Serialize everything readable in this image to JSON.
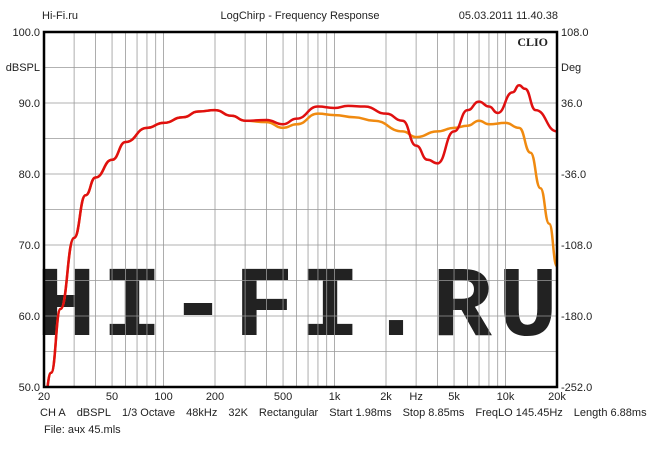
{
  "header": {
    "left": "Hi-Fi.ru",
    "title": "LogChirp - Frequency Response",
    "datetime": "05.03.2011 11.40.38"
  },
  "brand": "CLIO",
  "watermark": "HI-FI.RU",
  "footer": {
    "settings": [
      "CH A",
      "dBSPL",
      "1/3 Octave",
      "48kHz",
      "32K",
      "Rectangular",
      "Start 1.98ms",
      "Stop 8.85ms",
      "FreqLO 145.45Hz",
      "Length 6.88ms"
    ],
    "file": "File: aчx 45.mls"
  },
  "chart_data": {
    "type": "line",
    "title": "LogChirp - Frequency Response",
    "xlabel": "Hz",
    "ylabel": "dBSPL",
    "y2label": "Deg",
    "xscale": "log",
    "xlim": [
      20,
      20000
    ],
    "ylim": [
      50,
      100
    ],
    "y2lim": [
      -252,
      108
    ],
    "xticks": [
      {
        "v": 20,
        "l": "20"
      },
      {
        "v": 50,
        "l": "50"
      },
      {
        "v": 100,
        "l": "100"
      },
      {
        "v": 200,
        "l": "200"
      },
      {
        "v": 500,
        "l": "500"
      },
      {
        "v": 1000,
        "l": "1k"
      },
      {
        "v": 2000,
        "l": "2k"
      },
      {
        "v": 5000,
        "l": "5k"
      },
      {
        "v": 10000,
        "l": "10k"
      },
      {
        "v": 20000,
        "l": "20k"
      }
    ],
    "xunit_label_at": 3000,
    "yticks": [
      "100.0",
      "90.0",
      "80.0",
      "70.0",
      "60.0",
      "50.0"
    ],
    "ytick_values": [
      100,
      90,
      80,
      70,
      60,
      50
    ],
    "y2ticks": [
      "108.0",
      "36.0",
      "-36.0",
      "-108.0",
      "-180.0",
      "-252.0"
    ],
    "grid": true,
    "series": [
      {
        "name": "red",
        "color": "#e01010",
        "x": [
          20,
          22,
          25,
          30,
          35,
          40,
          50,
          60,
          80,
          100,
          130,
          160,
          200,
          250,
          300,
          400,
          500,
          600,
          800,
          1000,
          1200,
          1500,
          2000,
          2500,
          3000,
          3500,
          4000,
          5000,
          6000,
          7000,
          8000,
          9000,
          11000,
          12000,
          13000,
          15000,
          20000
        ],
        "y": [
          48,
          52,
          61,
          71,
          77,
          79.5,
          82,
          84.5,
          86.5,
          87.2,
          88,
          88.8,
          89,
          88.2,
          87.5,
          87.6,
          87,
          87.8,
          89.5,
          89.3,
          89.6,
          89.5,
          88.5,
          87.5,
          84,
          82,
          81.5,
          86,
          89,
          90.2,
          89.5,
          88.6,
          91.5,
          92.5,
          92,
          89,
          86
        ]
      },
      {
        "name": "orange",
        "color": "#f08a10",
        "x": [
          20,
          22,
          25,
          30,
          35,
          40,
          50,
          60,
          80,
          100,
          130,
          160,
          200,
          250,
          300,
          400,
          500,
          600,
          800,
          1000,
          1300,
          1700,
          2500,
          3000,
          4000,
          5000,
          6000,
          7000,
          8000,
          10000,
          12000,
          14000,
          16000,
          18000,
          20000
        ],
        "y": [
          48,
          52,
          61,
          71,
          77,
          79.5,
          82,
          84.5,
          86.5,
          87.2,
          88,
          88.8,
          89,
          88.2,
          87.5,
          87.3,
          86.5,
          87,
          88.5,
          88.3,
          88,
          87.5,
          86,
          85.2,
          86,
          86.5,
          86.8,
          87.5,
          87,
          87.2,
          86.5,
          83,
          78,
          73,
          67
        ]
      }
    ]
  }
}
